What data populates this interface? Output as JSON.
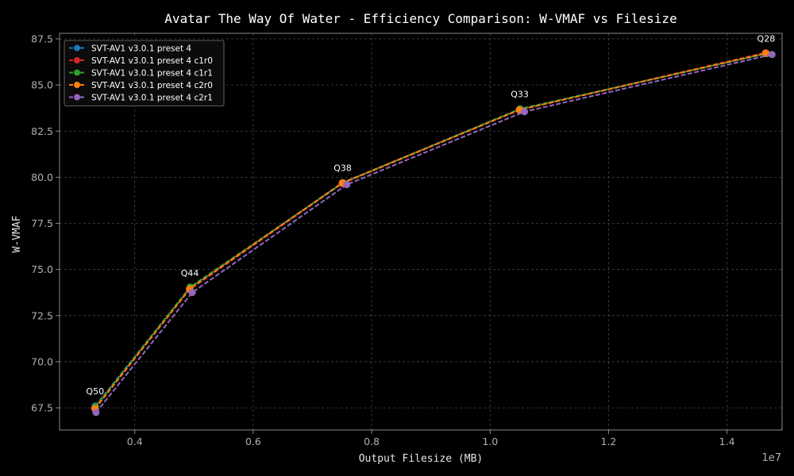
{
  "chart_data": {
    "type": "line",
    "title": "Avatar The Way Of Water - Efficiency Comparison: W-VMAF vs Filesize",
    "xlabel": "Output Filesize (MB)",
    "ylabel": "W-VMAF",
    "x_offset_label": "1e7",
    "xlim": [
      2730000,
      14930000
    ],
    "ylim": [
      66.3,
      87.8
    ],
    "xticks": [
      4000000,
      6000000,
      8000000,
      10000000,
      12000000,
      14000000
    ],
    "xtick_labels": [
      "0.4",
      "0.6",
      "0.8",
      "1.0",
      "1.2",
      "1.4"
    ],
    "yticks": [
      67.5,
      70.0,
      72.5,
      75.0,
      77.5,
      80.0,
      82.5,
      85.0,
      87.5
    ],
    "ytick_labels": [
      "67.5",
      "70.0",
      "72.5",
      "75.0",
      "77.5",
      "80.0",
      "82.5",
      "85.0",
      "87.5"
    ],
    "grid": true,
    "legend_position": "top-left",
    "point_labels": [
      "Q50",
      "Q44",
      "Q38",
      "Q33",
      "Q28"
    ],
    "series": [
      {
        "name": "SVT-AV1 v3.0.1 preset 4",
        "color": "#1f77b4",
        "x": [
          3330000,
          4930000,
          7510000,
          10500000,
          14660000
        ],
        "y": [
          67.6,
          74.0,
          79.7,
          83.7,
          86.7
        ]
      },
      {
        "name": "SVT-AV1 v3.0.1 preset 4 c1r0",
        "color": "#d62728",
        "x": [
          3320000,
          4920000,
          7500000,
          10490000,
          14650000
        ],
        "y": [
          67.5,
          73.9,
          79.65,
          83.65,
          86.75
        ]
      },
      {
        "name": "SVT-AV1 v3.0.1 preset 4 c1r1",
        "color": "#2ca02c",
        "x": [
          3335000,
          4935000,
          7520000,
          10510000,
          14670000
        ],
        "y": [
          67.55,
          74.05,
          79.7,
          83.7,
          86.7
        ]
      },
      {
        "name": "SVT-AV1 v3.0.1 preset 4 c2r0",
        "color": "#ff7f0e",
        "x": [
          3328000,
          4928000,
          7505000,
          10495000,
          14655000
        ],
        "y": [
          67.45,
          73.95,
          79.7,
          83.65,
          86.72
        ]
      },
      {
        "name": "SVT-AV1 v3.0.1 preset 4 c2r1",
        "color": "#9467bd",
        "x": [
          3345000,
          4970000,
          7580000,
          10580000,
          14760000
        ],
        "y": [
          67.25,
          73.75,
          79.6,
          83.55,
          86.65
        ]
      }
    ]
  }
}
